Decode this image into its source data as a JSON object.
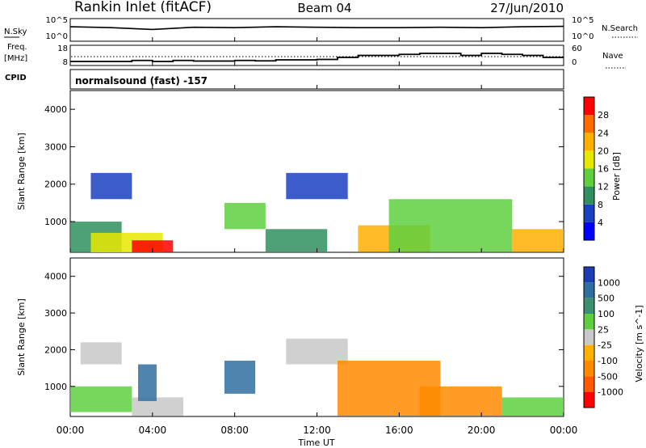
{
  "header": {
    "station": "Rankin Inlet (fitACF)",
    "beam": "Beam 04",
    "date": "27/Jun/2010"
  },
  "nsky_panel": {
    "left_label": "N.Sky",
    "left_ticks": [
      "10^5",
      "10^0"
    ],
    "right_label": "N.Search",
    "right_ticks": [
      "10^5",
      "10^0"
    ]
  },
  "freq_panel": {
    "left_label_1": "Freq.",
    "left_label_2": "[MHz]",
    "left_ticks": [
      "18",
      "8"
    ],
    "right_label": "Nave",
    "right_ticks": [
      "60",
      "0"
    ],
    "cpid_label": "CPID"
  },
  "cpid_text": "normalsound (fast) -157",
  "time_axis": {
    "label": "Time UT",
    "ticks": [
      "00:00",
      "04:00",
      "08:00",
      "12:00",
      "16:00",
      "20:00",
      "00:00"
    ]
  },
  "range_axis": {
    "label": "Slant Range [km]",
    "ticks": [
      "1000",
      "2000",
      "3000",
      "4000"
    ]
  },
  "power_scale": {
    "label": "Power [dB]",
    "ticks": [
      "4",
      "8",
      "12",
      "16",
      "20",
      "24",
      "28"
    ],
    "colors": [
      "#0000ff",
      "#1a3fbf",
      "#2f8f5f",
      "#5fcf3f",
      "#e7e700",
      "#ffaf00",
      "#ff6a00",
      "#ff0000"
    ]
  },
  "velocity_scale": {
    "label": "Velocity [m s^-1]",
    "ticks": [
      "1000",
      "500",
      "100",
      "25",
      "-25",
      "-100",
      "-500",
      "-1000"
    ],
    "colors": [
      "#1c3cb4",
      "#2f6fa0",
      "#3c8f6f",
      "#5fcf3f",
      "#c8c8c8",
      "#ffb000",
      "#ff8a00",
      "#ff5a00",
      "#ff0000"
    ]
  },
  "chart_data": [
    {
      "type": "line",
      "title": "N.Sky / N.Search",
      "x": [
        0,
        2,
        4,
        6,
        8,
        10,
        12,
        14,
        16,
        18,
        20,
        22,
        24
      ],
      "series": [
        {
          "name": "N.Sky",
          "values": [
            3.2,
            3.0,
            2.6,
            3.1,
            3.0,
            3.2,
            3.1,
            3.0,
            3.0,
            3.1,
            3.0,
            3.2,
            3.3
          ]
        }
      ]
    },
    {
      "type": "line",
      "title": "Freq. [MHz] / Nave",
      "x": [
        0,
        2,
        3,
        4,
        5,
        6,
        8,
        9,
        10,
        12,
        13,
        14,
        15,
        16,
        17,
        18,
        19,
        20,
        21,
        22,
        23,
        24
      ],
      "series": [
        {
          "name": "Freq.",
          "values": [
            10,
            10,
            10.5,
            10,
            10.5,
            10.2,
            10.5,
            10.3,
            10.8,
            11,
            12,
            13,
            13,
            13.5,
            14,
            14,
            13,
            14,
            13.5,
            13,
            12,
            12
          ]
        }
      ],
      "ylim": [
        8,
        18
      ]
    },
    {
      "type": "heatmap",
      "title": "Power [dB]",
      "xlabel": "Time UT",
      "ylabel": "Slant Range [km]",
      "xlim": [
        0,
        24
      ],
      "ylim": [
        180,
        4500
      ],
      "clim": [
        0,
        30
      ],
      "regions": [
        {
          "t0": 0.0,
          "t1": 2.5,
          "r0": 180,
          "r1": 1000,
          "value": 10
        },
        {
          "t0": 1.0,
          "t1": 4.5,
          "r0": 180,
          "r1": 700,
          "value": 16
        },
        {
          "t0": 3.0,
          "t1": 5.0,
          "r0": 180,
          "r1": 500,
          "value": 28
        },
        {
          "t0": 1.0,
          "t1": 3.0,
          "r0": 1600,
          "r1": 2300,
          "value": 6
        },
        {
          "t0": 7.5,
          "t1": 9.5,
          "r0": 800,
          "r1": 1500,
          "value": 14
        },
        {
          "t0": 9.5,
          "t1": 12.5,
          "r0": 200,
          "r1": 800,
          "value": 10
        },
        {
          "t0": 10.5,
          "t1": 13.5,
          "r0": 1600,
          "r1": 2300,
          "value": 6
        },
        {
          "t0": 14.0,
          "t1": 17.5,
          "r0": 200,
          "r1": 900,
          "value": 22
        },
        {
          "t0": 15.5,
          "t1": 21.5,
          "r0": 200,
          "r1": 1600,
          "value": 14
        },
        {
          "t0": 21.5,
          "t1": 24.0,
          "r0": 200,
          "r1": 800,
          "value": 20
        }
      ]
    },
    {
      "type": "heatmap",
      "title": "Velocity [m s^-1]",
      "xlabel": "Time UT",
      "ylabel": "Slant Range [km]",
      "xlim": [
        0,
        24
      ],
      "ylim": [
        180,
        4500
      ],
      "clim": [
        -1000,
        1000
      ],
      "regions": [
        {
          "t0": 0.0,
          "t1": 3.0,
          "r0": 300,
          "r1": 1000,
          "value": 50
        },
        {
          "t0": 0.5,
          "t1": 2.5,
          "r0": 1600,
          "r1": 2200,
          "value": 0
        },
        {
          "t0": 3.0,
          "t1": 5.5,
          "r0": 200,
          "r1": 700,
          "value": 0
        },
        {
          "t0": 3.3,
          "t1": 4.2,
          "r0": 600,
          "r1": 1600,
          "value": 600
        },
        {
          "t0": 7.5,
          "t1": 9.0,
          "r0": 800,
          "r1": 1700,
          "value": 600
        },
        {
          "t0": 10.5,
          "t1": 13.5,
          "r0": 1600,
          "r1": 2300,
          "value": 0
        },
        {
          "t0": 13.0,
          "t1": 18.0,
          "r0": 200,
          "r1": 1700,
          "value": -400
        },
        {
          "t0": 17.0,
          "t1": 21.0,
          "r0": 200,
          "r1": 1000,
          "value": -450
        },
        {
          "t0": 21.0,
          "t1": 24.0,
          "r0": 200,
          "r1": 700,
          "value": 50
        }
      ]
    }
  ]
}
